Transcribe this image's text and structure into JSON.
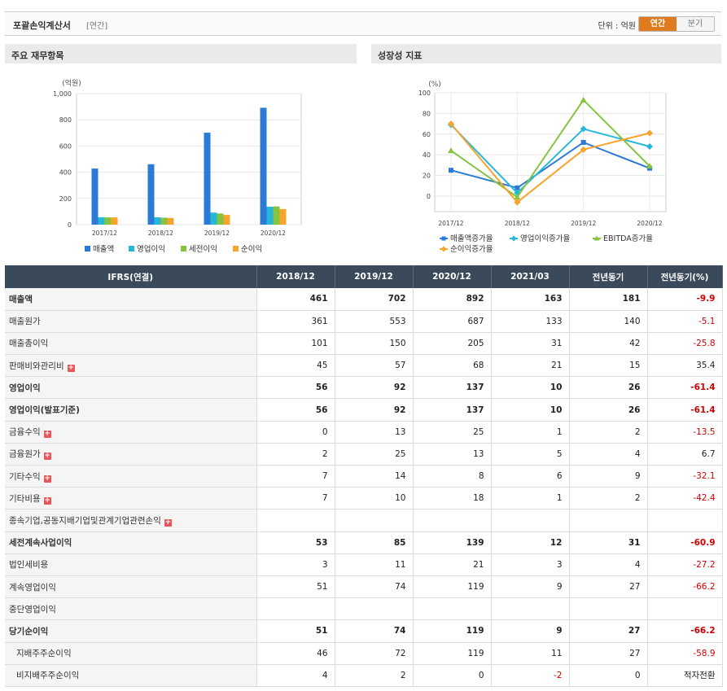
{
  "header": {
    "title": "포괄손익계산서",
    "subtitle": "[연간]",
    "unit": "단위 : 억원",
    "tabs": [
      "연간",
      "분기"
    ]
  },
  "colors": {
    "sales": "#2b7ad6",
    "op": "#27b8d8",
    "pretax": "#86c440",
    "net": "#f7a42c",
    "accent": "#e07a1f",
    "negative": "#d00000"
  },
  "left_panel": {
    "title": "주요 재무항목"
  },
  "right_panel": {
    "title": "성장성 지표"
  },
  "chart_data": [
    {
      "type": "bar",
      "ylabel": "(억원)",
      "ylim": [
        0,
        1000
      ],
      "yticks": [
        "0",
        "200",
        "400",
        "600",
        "800",
        "1,000"
      ],
      "categories": [
        "2017/12",
        "2018/12",
        "2019/12",
        "2020/12"
      ],
      "series": [
        {
          "name": "매출액",
          "values": [
            428,
            461,
            702,
            892
          ]
        },
        {
          "name": "영업이익",
          "values": [
            56,
            56,
            92,
            137
          ]
        },
        {
          "name": "세전이익",
          "values": [
            55,
            53,
            85,
            139
          ]
        },
        {
          "name": "순이익",
          "values": [
            55,
            51,
            74,
            119
          ]
        }
      ]
    },
    {
      "type": "line",
      "ylabel": "(%)",
      "ylim": [
        -15,
        100
      ],
      "yticks": [
        "0",
        "20",
        "40",
        "60",
        "80",
        "100"
      ],
      "categories": [
        "2017/12",
        "2018/12",
        "2019/12",
        "2020/12"
      ],
      "series": [
        {
          "name": "매출액증가율",
          "values": [
            25,
            8,
            52,
            27
          ]
        },
        {
          "name": "영업이익증가율",
          "values": [
            69,
            3,
            65,
            48
          ]
        },
        {
          "name": "EBITDA증가율",
          "values": [
            44,
            -1,
            93,
            29
          ]
        },
        {
          "name": "순이익증가율",
          "values": [
            70,
            -6,
            45,
            61
          ]
        }
      ]
    }
  ],
  "table": {
    "headers": [
      "IFRS(연결)",
      "2018/12",
      "2019/12",
      "2020/12",
      "2021/03",
      "전년동기",
      "전년동기(%)"
    ],
    "rows": [
      {
        "label": "매출액",
        "bold": true,
        "values": [
          "461",
          "702",
          "892",
          "163",
          "181",
          "-9.9"
        ]
      },
      {
        "label": "매출원가",
        "values": [
          "361",
          "553",
          "687",
          "133",
          "140",
          "-5.1"
        ]
      },
      {
        "label": "매출총이익",
        "values": [
          "101",
          "150",
          "205",
          "31",
          "42",
          "-25.8"
        ]
      },
      {
        "label": "판매비와관리비",
        "plus": true,
        "values": [
          "45",
          "57",
          "68",
          "21",
          "15",
          "35.4"
        ]
      },
      {
        "label": "영업이익",
        "bold": true,
        "values": [
          "56",
          "92",
          "137",
          "10",
          "26",
          "-61.4"
        ]
      },
      {
        "label": "영업이익(발표기준)",
        "bold": true,
        "values": [
          "56",
          "92",
          "137",
          "10",
          "26",
          "-61.4"
        ]
      },
      {
        "label": "금융수익",
        "plus": true,
        "values": [
          "0",
          "13",
          "25",
          "1",
          "2",
          "-13.5"
        ]
      },
      {
        "label": "금융원가",
        "plus": true,
        "values": [
          "2",
          "25",
          "13",
          "5",
          "4",
          "6.7"
        ]
      },
      {
        "label": "기타수익",
        "plus": true,
        "values": [
          "7",
          "14",
          "8",
          "6",
          "9",
          "-32.1"
        ]
      },
      {
        "label": "기타비용",
        "plus": true,
        "values": [
          "7",
          "10",
          "18",
          "1",
          "2",
          "-42.4"
        ]
      },
      {
        "label": "종속기업,공동지배기업및관계기업관련손익",
        "plus": true,
        "values": [
          "",
          "",
          "",
          "",
          "",
          ""
        ]
      },
      {
        "label": "세전계속사업이익",
        "bold": true,
        "values": [
          "53",
          "85",
          "139",
          "12",
          "31",
          "-60.9"
        ]
      },
      {
        "label": "법인세비용",
        "values": [
          "3",
          "11",
          "21",
          "3",
          "4",
          "-27.2"
        ]
      },
      {
        "label": "계속영업이익",
        "values": [
          "51",
          "74",
          "119",
          "9",
          "27",
          "-66.2"
        ]
      },
      {
        "label": "중단영업이익",
        "values": [
          "",
          "",
          "",
          "",
          "",
          ""
        ]
      },
      {
        "label": "당기순이익",
        "bold": true,
        "values": [
          "51",
          "74",
          "119",
          "9",
          "27",
          "-66.2"
        ]
      },
      {
        "label": "지배주주순이익",
        "indent": true,
        "values": [
          "46",
          "72",
          "119",
          "11",
          "27",
          "-58.9"
        ]
      },
      {
        "label": "비지배주주순이익",
        "indent": true,
        "values": [
          "4",
          "2",
          "0",
          "-2",
          "0",
          "적자전환"
        ]
      }
    ]
  }
}
